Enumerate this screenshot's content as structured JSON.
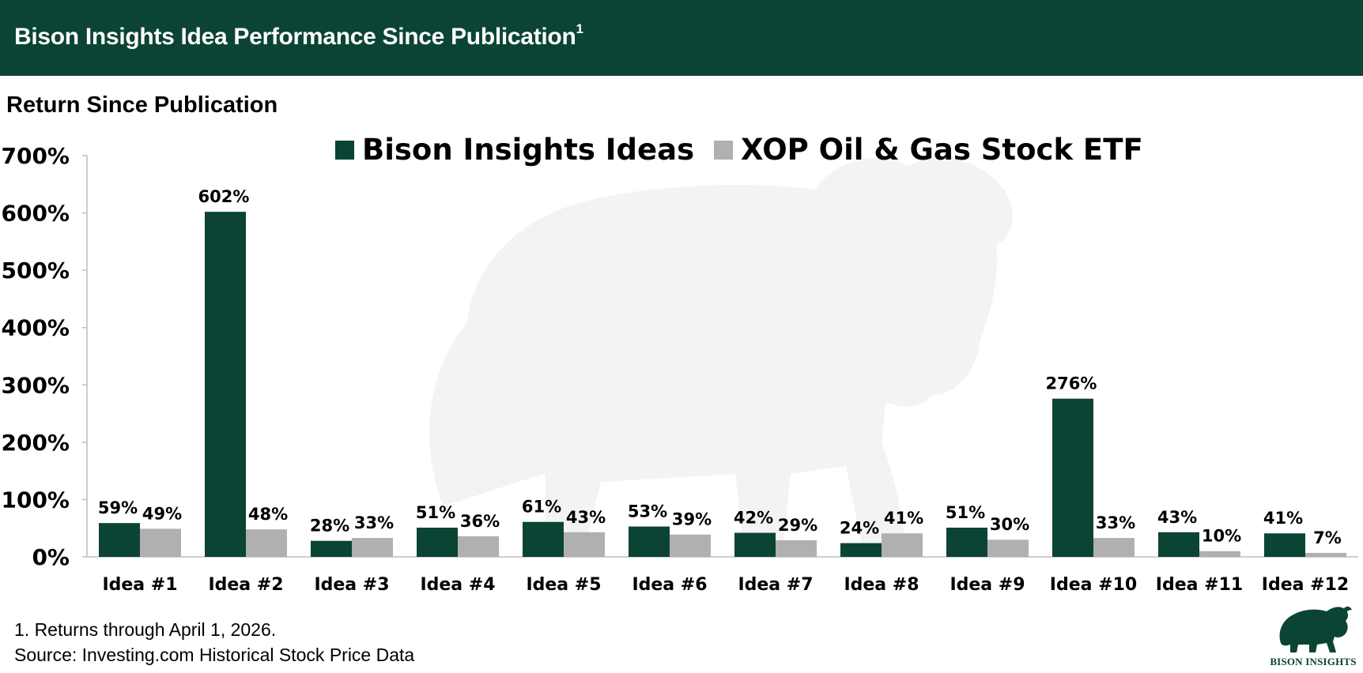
{
  "header": {
    "title": "Bison Insights Idea Performance Since Publication",
    "title_superscript": "1"
  },
  "colors": {
    "banner": "#0b4434",
    "series_primary": "#0b4434",
    "series_secondary": "#b0b0b0",
    "watermark": "#f3f3f3"
  },
  "chart_data": {
    "type": "bar",
    "title": "Return Since Publication",
    "xlabel": "",
    "ylabel": "",
    "ylim": [
      0,
      700
    ],
    "yticks": [
      0,
      100,
      200,
      300,
      400,
      500,
      600,
      700
    ],
    "ytick_labels": [
      "0%",
      "100%",
      "200%",
      "300%",
      "400%",
      "500%",
      "600%",
      "700%"
    ],
    "categories": [
      "Idea #1",
      "Idea #2",
      "Idea #3",
      "Idea #4",
      "Idea #5",
      "Idea #6",
      "Idea #7",
      "Idea #8",
      "Idea #9",
      "Idea #10",
      "Idea #11",
      "Idea #12"
    ],
    "series": [
      {
        "name": "Bison Insights Ideas",
        "values": [
          59,
          602,
          28,
          51,
          61,
          53,
          42,
          24,
          51,
          276,
          43,
          41
        ],
        "labels": [
          "59%",
          "602%",
          "28%",
          "51%",
          "61%",
          "53%",
          "42%",
          "24%",
          "51%",
          "276%",
          "43%",
          "41%"
        ]
      },
      {
        "name": "XOP Oil & Gas Stock ETF",
        "values": [
          49,
          48,
          33,
          36,
          43,
          39,
          29,
          41,
          30,
          33,
          10,
          7
        ],
        "labels": [
          "49%",
          "48%",
          "33%",
          "36%",
          "43%",
          "39%",
          "29%",
          "41%",
          "30%",
          "33%",
          "10%",
          "7%"
        ]
      }
    ],
    "legend": "top-center",
    "grid": false
  },
  "footnotes": {
    "note_1": "1. Returns through April 1, 2026.",
    "source": "Source: Investing.com Historical Stock Price Data"
  },
  "logo": {
    "text": "BISON INSIGHTS",
    "icon": "bison-icon"
  }
}
